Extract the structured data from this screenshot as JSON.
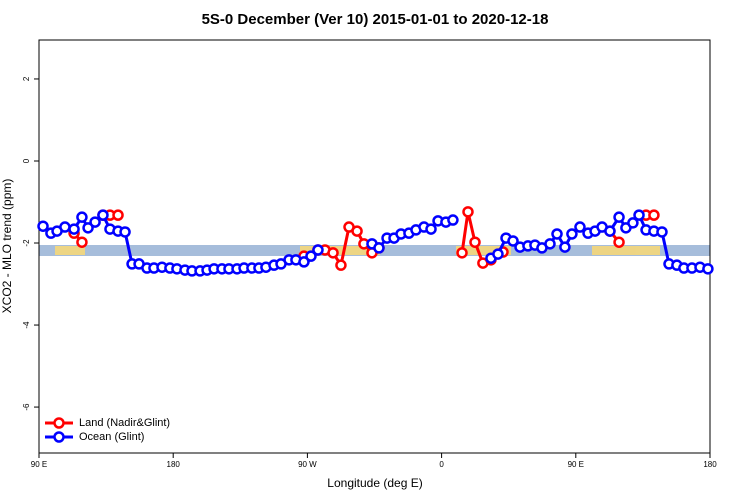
{
  "chart_data": {
    "type": "line",
    "title": "5S-0 December (Ver 10)   2015-01-01 to 2020-12-18",
    "x_label": "Longitude (deg E)",
    "y_label": "XCO2 - MLO trend (ppm)",
    "xlim": [
      90,
      540
    ],
    "xticks": [
      {
        "value": 90,
        "label": "90 E"
      },
      180,
      {
        "value": 270,
        "label": "90 W"
      },
      {
        "value": 360,
        "label": "0"
      },
      {
        "value": 450,
        "label": "90 E"
      },
      {
        "value": 540,
        "label": "180"
      }
    ],
    "ylim": [
      -7.12,
      2.95
    ],
    "yticks": [
      2,
      0,
      -2,
      -4,
      -6
    ],
    "legend": "bottom-left",
    "series": [
      {
        "name": "Land (Nadir&Glint)",
        "color": "#ff0000",
        "x": [
          113.5,
          118.8,
          null,
          132.9,
          137.6,
          143.0,
          null,
          267.7,
          277.1,
          281.8,
          287.2,
          292.5,
          297.9,
          303.3,
          307.9,
          313.3,
          318.0,
          null,
          373.7,
          377.7,
          382.4,
          387.7,
          393.1,
          401.2,
          null,
          472.9,
          479.0,
          null,
          497.1,
          502.4
        ],
        "values": [
          -1.76,
          -1.98,
          null,
          -1.32,
          -1.32,
          -1.32,
          null,
          -2.32,
          -2.17,
          -2.17,
          -2.24,
          -2.54,
          -1.61,
          -1.71,
          -2.02,
          -2.24,
          -2.12,
          null,
          -2.24,
          -1.24,
          -1.98,
          -2.49,
          -2.41,
          -2.22,
          null,
          -1.71,
          -1.98,
          null,
          -1.32,
          -1.32
        ]
      },
      {
        "name": "Ocean (Glint)",
        "color": "#0000ff",
        "x": [
          92.7,
          98.0,
          102.1,
          107.4,
          113.5,
          118.8,
          122.9,
          127.6,
          132.9,
          137.6,
          143.0,
          147.7,
          152.4,
          157.1,
          162.4,
          167.1,
          172.5,
          177.8,
          182.5,
          187.9,
          192.6,
          198.0,
          202.7,
          207.4,
          212.7,
          217.4,
          222.8,
          227.5,
          232.8,
          237.5,
          242.2,
          247.6,
          252.3,
          257.7,
          262.3,
          267.7,
          272.4,
          277.1,
          null,
          313.3,
          318.0,
          323.4,
          328.1,
          332.8,
          338.1,
          342.8,
          348.2,
          352.9,
          357.6,
          362.9,
          367.6,
          null,
          393.1,
          397.8,
          403.2,
          407.9,
          412.6,
          417.9,
          422.6,
          427.3,
          432.7,
          437.4,
          442.7,
          447.4,
          452.8,
          458.2,
          462.9,
          467.6,
          472.9,
          479.0,
          483.6,
          488.3,
          492.4,
          497.1,
          502.4,
          507.8,
          512.5,
          517.8,
          522.5,
          527.9,
          533.3,
          538.6
        ],
        "values": [
          -1.59,
          -1.76,
          -1.71,
          -1.61,
          -1.66,
          -1.37,
          -1.63,
          -1.49,
          -1.32,
          -1.66,
          -1.71,
          -1.73,
          -2.51,
          -2.51,
          -2.61,
          -2.61,
          -2.59,
          -2.61,
          -2.63,
          -2.66,
          -2.68,
          -2.68,
          -2.66,
          -2.63,
          -2.63,
          -2.63,
          -2.63,
          -2.61,
          -2.61,
          -2.61,
          -2.59,
          -2.54,
          -2.51,
          -2.41,
          -2.41,
          -2.46,
          -2.32,
          -2.17,
          null,
          -2.02,
          -2.12,
          -1.88,
          -1.88,
          -1.78,
          -1.76,
          -1.68,
          -1.61,
          -1.66,
          -1.46,
          -1.49,
          -1.44,
          null,
          -2.37,
          -2.27,
          -1.88,
          -1.95,
          -2.1,
          -2.07,
          -2.05,
          -2.12,
          -2.02,
          -1.78,
          -2.1,
          -1.78,
          -1.61,
          -1.76,
          -1.71,
          -1.61,
          -1.71,
          -1.37,
          -1.63,
          -1.51,
          -1.32,
          -1.68,
          -1.71,
          -1.73,
          -2.51,
          -2.54,
          -2.61,
          -2.61,
          -2.59,
          -2.63
        ]
      }
    ]
  }
}
